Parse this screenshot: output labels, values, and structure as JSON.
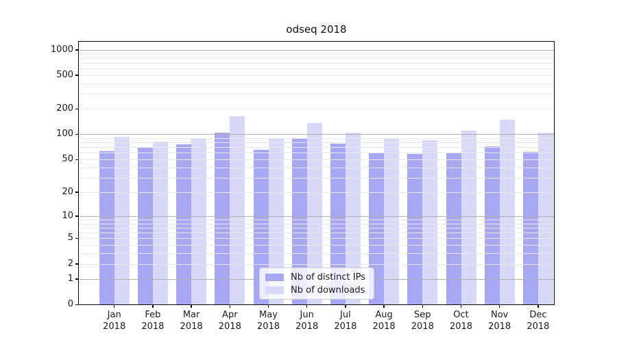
{
  "title": "odseq 2018",
  "chart_data": {
    "type": "bar",
    "title": "odseq 2018",
    "categories": [
      "Jan",
      "Feb",
      "Mar",
      "Apr",
      "May",
      "Jun",
      "Jul",
      "Aug",
      "Sep",
      "Oct",
      "Nov",
      "Dec"
    ],
    "year_label": "2018",
    "series": [
      {
        "name": "Nb of distinct IPs",
        "color": "#a7a7f3",
        "values": [
          63,
          69,
          76,
          105,
          65,
          90,
          77,
          61,
          58,
          60,
          72,
          62
        ]
      },
      {
        "name": "Nb of downloads",
        "color": "#d8d8f9",
        "values": [
          94,
          81,
          90,
          162,
          88,
          135,
          104,
          88,
          85,
          111,
          148,
          104
        ]
      }
    ],
    "xlabel": "",
    "ylabel": "",
    "y_scale": "log1p",
    "ylim": [
      0,
      1240
    ],
    "y_ticks": [
      0,
      1,
      2,
      5,
      10,
      20,
      50,
      100,
      200,
      500,
      1000
    ],
    "y_major_gridlines": [
      1,
      10,
      100,
      1000
    ],
    "y_minor_gridlines": [
      2,
      3,
      4,
      5,
      6,
      7,
      8,
      9,
      20,
      30,
      40,
      50,
      60,
      70,
      80,
      90,
      200,
      300,
      400,
      500,
      600,
      700,
      800,
      900
    ],
    "grid": true,
    "grid_over_bars": true,
    "legend_position": "lower center"
  },
  "colors": {
    "background": "#ffffff",
    "spine": "#000000",
    "major_grid": "#b0b0b0",
    "minor_grid": "#e8e8e8",
    "text": "#1a1a1a"
  }
}
